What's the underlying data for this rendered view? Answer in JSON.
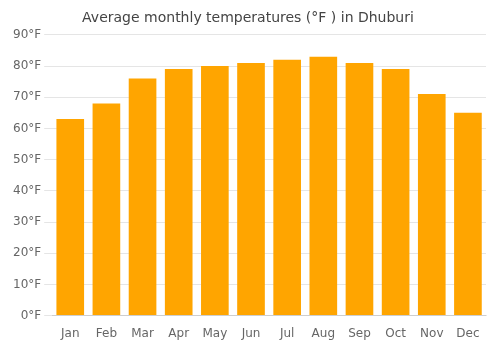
{
  "chart_data": {
    "type": "bar",
    "title": "Average monthly temperatures (°F ) in Dhuburi",
    "categories": [
      "Jan",
      "Feb",
      "Mar",
      "Apr",
      "May",
      "Jun",
      "Jul",
      "Aug",
      "Sep",
      "Oct",
      "Nov",
      "Dec"
    ],
    "values": [
      63,
      68,
      76,
      79,
      80,
      81,
      82,
      83,
      81,
      79,
      71,
      65
    ],
    "color": "#FFA500",
    "ylim": [
      0,
      90
    ],
    "yticks": [
      {
        "value": 0,
        "label": "0°F"
      },
      {
        "value": 10,
        "label": "10°F"
      },
      {
        "value": 20,
        "label": "20°F"
      },
      {
        "value": 30,
        "label": "30°F"
      },
      {
        "value": 40,
        "label": "40°F"
      },
      {
        "value": 50,
        "label": "50°F"
      },
      {
        "value": 60,
        "label": "60°F"
      },
      {
        "value": 70,
        "label": "70°F"
      },
      {
        "value": 80,
        "label": "80°F"
      },
      {
        "value": 90,
        "label": "90°F"
      }
    ],
    "grid": true
  }
}
